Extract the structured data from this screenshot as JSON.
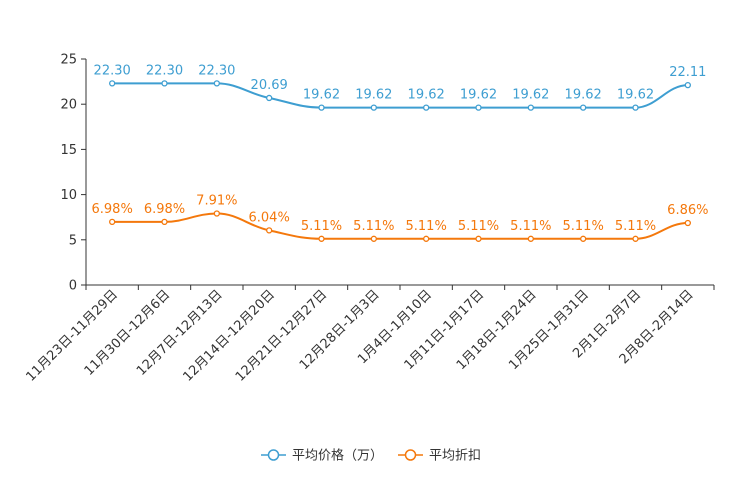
{
  "chart_data": {
    "type": "line",
    "categories": [
      "11月23日-11月29日",
      "11月30日-12月6日",
      "12月7日-12月13日",
      "12月14日-12月20日",
      "12月21日-12月27日",
      "12月28日-1月3日",
      "1月4日-1月10日",
      "1月11日-1月17日",
      "1月18日-1月24日",
      "1月25日-1月31日",
      "2月1日-2月7日",
      "2月8日-2月14日"
    ],
    "series": [
      {
        "name": "平均价格（万）",
        "color": "#3e9ed1",
        "values": [
          22.3,
          22.3,
          22.3,
          20.69,
          19.62,
          19.62,
          19.62,
          19.62,
          19.62,
          19.62,
          19.62,
          22.11
        ],
        "labels": [
          "22.30",
          "22.30",
          "22.30",
          "20.69",
          "19.62",
          "19.62",
          "19.62",
          "19.62",
          "19.62",
          "19.62",
          "19.62",
          "22.11"
        ]
      },
      {
        "name": "平均折扣",
        "color": "#f4780c",
        "values": [
          6.98,
          6.98,
          7.91,
          6.04,
          5.11,
          5.11,
          5.11,
          5.11,
          5.11,
          5.11,
          5.11,
          6.86
        ],
        "labels": [
          "6.98%",
          "6.98%",
          "7.91%",
          "6.04%",
          "5.11%",
          "5.11%",
          "5.11%",
          "5.11%",
          "5.11%",
          "5.11%",
          "5.11%",
          "6.86%"
        ]
      }
    ],
    "y_ticks": [
      "0",
      "5",
      "10",
      "15",
      "20",
      "25"
    ],
    "ylim": [
      0,
      25
    ],
    "title": "",
    "xlabel": "",
    "ylabel": "",
    "legend_position": "bottom-center",
    "grid": false
  }
}
